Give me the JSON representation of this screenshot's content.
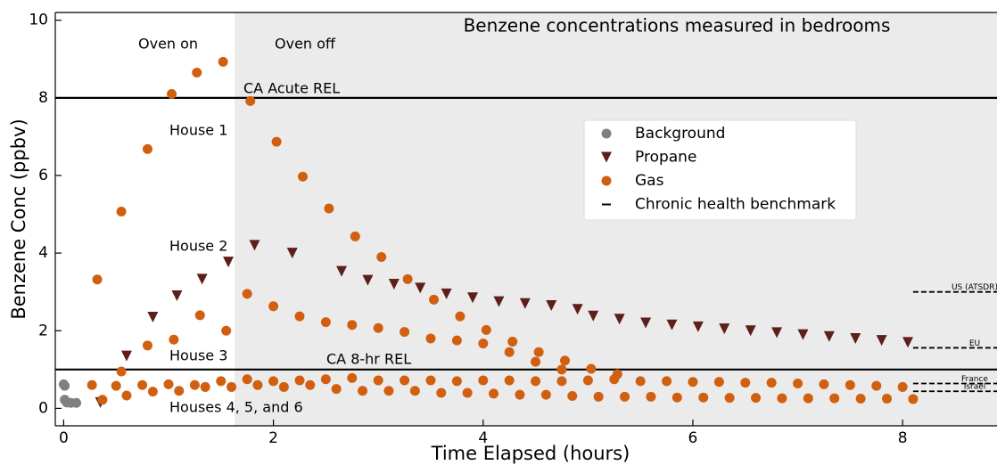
{
  "chart_data": {
    "type": "scatter",
    "title": "Benzene concentrations measured in bedrooms",
    "xlabel": "Time Elapsed (hours)",
    "ylabel": "Benzene Conc (ppbv)",
    "xlim": [
      -0.08,
      8.9
    ],
    "ylim": [
      -0.45,
      10.2
    ],
    "xticks": [
      0,
      2,
      4,
      6,
      8
    ],
    "yticks": [
      0,
      2,
      4,
      6,
      8,
      10
    ],
    "shade_start": 1.63,
    "annotations": [
      "Oven on",
      "Oven off",
      "House 1",
      "House 2",
      "House 3",
      "Houses 4, 5, and 6"
    ],
    "reference_lines": [
      {
        "label": "CA Acute REL",
        "value": 8
      },
      {
        "label": "CA 8-hr REL",
        "value": 1
      }
    ],
    "benchmarks": {
      "name": "Chronic health benchmark",
      "items": [
        {
          "label": "US (ATSDR)",
          "value": 3.0
        },
        {
          "label": "EU",
          "value": 1.56
        },
        {
          "label": "France",
          "value": 0.64
        },
        {
          "label": "Israel",
          "value": 0.44
        }
      ]
    },
    "series": [
      {
        "name": "Background",
        "color": "#808080",
        "marker": "circle",
        "x": [
          0.0,
          0.01,
          0.01,
          0.03,
          0.07,
          0.12
        ],
        "y": [
          0.62,
          0.58,
          0.22,
          0.15,
          0.14,
          0.14
        ]
      },
      {
        "name": "Propane",
        "color": "#5c1f1a",
        "marker": "triangle-down",
        "x": [
          0.35,
          0.6,
          0.85,
          1.08,
          1.32,
          1.57,
          1.82,
          2.18,
          2.65,
          2.9,
          3.15,
          3.4,
          3.65,
          3.9,
          4.15,
          4.4,
          4.65,
          4.9,
          5.05,
          5.3,
          5.55,
          5.8,
          6.05,
          6.3,
          6.55,
          6.8,
          7.05,
          7.3,
          7.55,
          7.8,
          8.05
        ],
        "y": [
          0.15,
          1.35,
          2.35,
          2.9,
          3.33,
          3.77,
          4.2,
          4.0,
          3.53,
          3.3,
          3.2,
          3.1,
          2.95,
          2.85,
          2.75,
          2.7,
          2.65,
          2.55,
          2.38,
          2.3,
          2.2,
          2.15,
          2.1,
          2.05,
          2.0,
          1.95,
          1.9,
          1.85,
          1.8,
          1.75,
          1.7
        ]
      },
      {
        "name": "Gas",
        "color": "#d0600f",
        "marker": "circle",
        "x": [
          0.32,
          0.55,
          0.8,
          1.03,
          1.27,
          1.52,
          1.78,
          2.03,
          2.28,
          2.53,
          2.78,
          3.03,
          3.28,
          3.53,
          3.78,
          4.03,
          4.28,
          4.53,
          4.78,
          5.03,
          5.28,
          0.55,
          0.8,
          1.05,
          1.3,
          1.55,
          1.75,
          2.0,
          2.25,
          2.5,
          2.75,
          3.0,
          3.25,
          3.5,
          3.75,
          4.0,
          4.25,
          4.5,
          4.75,
          0.27,
          0.5,
          0.75,
          1.0,
          1.25,
          1.5,
          1.75,
          2.0,
          2.25,
          2.5,
          2.75,
          3.0,
          3.25,
          3.5,
          3.75,
          4.0,
          4.25,
          4.5,
          4.75,
          5.0,
          5.25,
          5.5,
          5.75,
          6.0,
          6.25,
          6.5,
          6.75,
          7.0,
          7.25,
          7.5,
          7.75,
          8.0,
          0.37,
          0.6,
          0.85,
          1.1,
          1.35,
          1.6,
          1.85,
          2.1,
          2.35,
          2.6,
          2.85,
          3.1,
          3.35,
          3.6,
          3.85,
          4.1,
          4.35,
          4.6,
          4.85,
          5.1,
          5.35,
          5.6,
          5.85,
          6.1,
          6.35,
          6.6,
          6.85,
          7.1,
          7.35,
          7.6,
          7.85,
          8.1
        ],
        "y": [
          3.32,
          5.07,
          6.68,
          8.1,
          8.65,
          8.93,
          7.92,
          6.87,
          5.97,
          5.15,
          4.43,
          3.9,
          3.33,
          2.8,
          2.37,
          2.02,
          1.72,
          1.45,
          1.23,
          1.02,
          0.88,
          0.95,
          1.62,
          1.77,
          2.4,
          2.0,
          2.95,
          2.63,
          2.37,
          2.22,
          2.15,
          2.07,
          1.97,
          1.8,
          1.75,
          1.67,
          1.45,
          1.2,
          1.0,
          0.6,
          0.58,
          0.6,
          0.62,
          0.6,
          0.7,
          0.75,
          0.7,
          0.72,
          0.75,
          0.78,
          0.72,
          0.72,
          0.72,
          0.7,
          0.72,
          0.72,
          0.7,
          0.7,
          0.72,
          0.75,
          0.7,
          0.7,
          0.68,
          0.68,
          0.66,
          0.66,
          0.64,
          0.62,
          0.6,
          0.58,
          0.55,
          0.22,
          0.33,
          0.43,
          0.45,
          0.55,
          0.55,
          0.6,
          0.55,
          0.6,
          0.5,
          0.45,
          0.45,
          0.45,
          0.4,
          0.4,
          0.38,
          0.35,
          0.35,
          0.32,
          0.3,
          0.3,
          0.3,
          0.28,
          0.28,
          0.27,
          0.27,
          0.26,
          0.26,
          0.26,
          0.25,
          0.25,
          0.24
        ]
      }
    ]
  }
}
